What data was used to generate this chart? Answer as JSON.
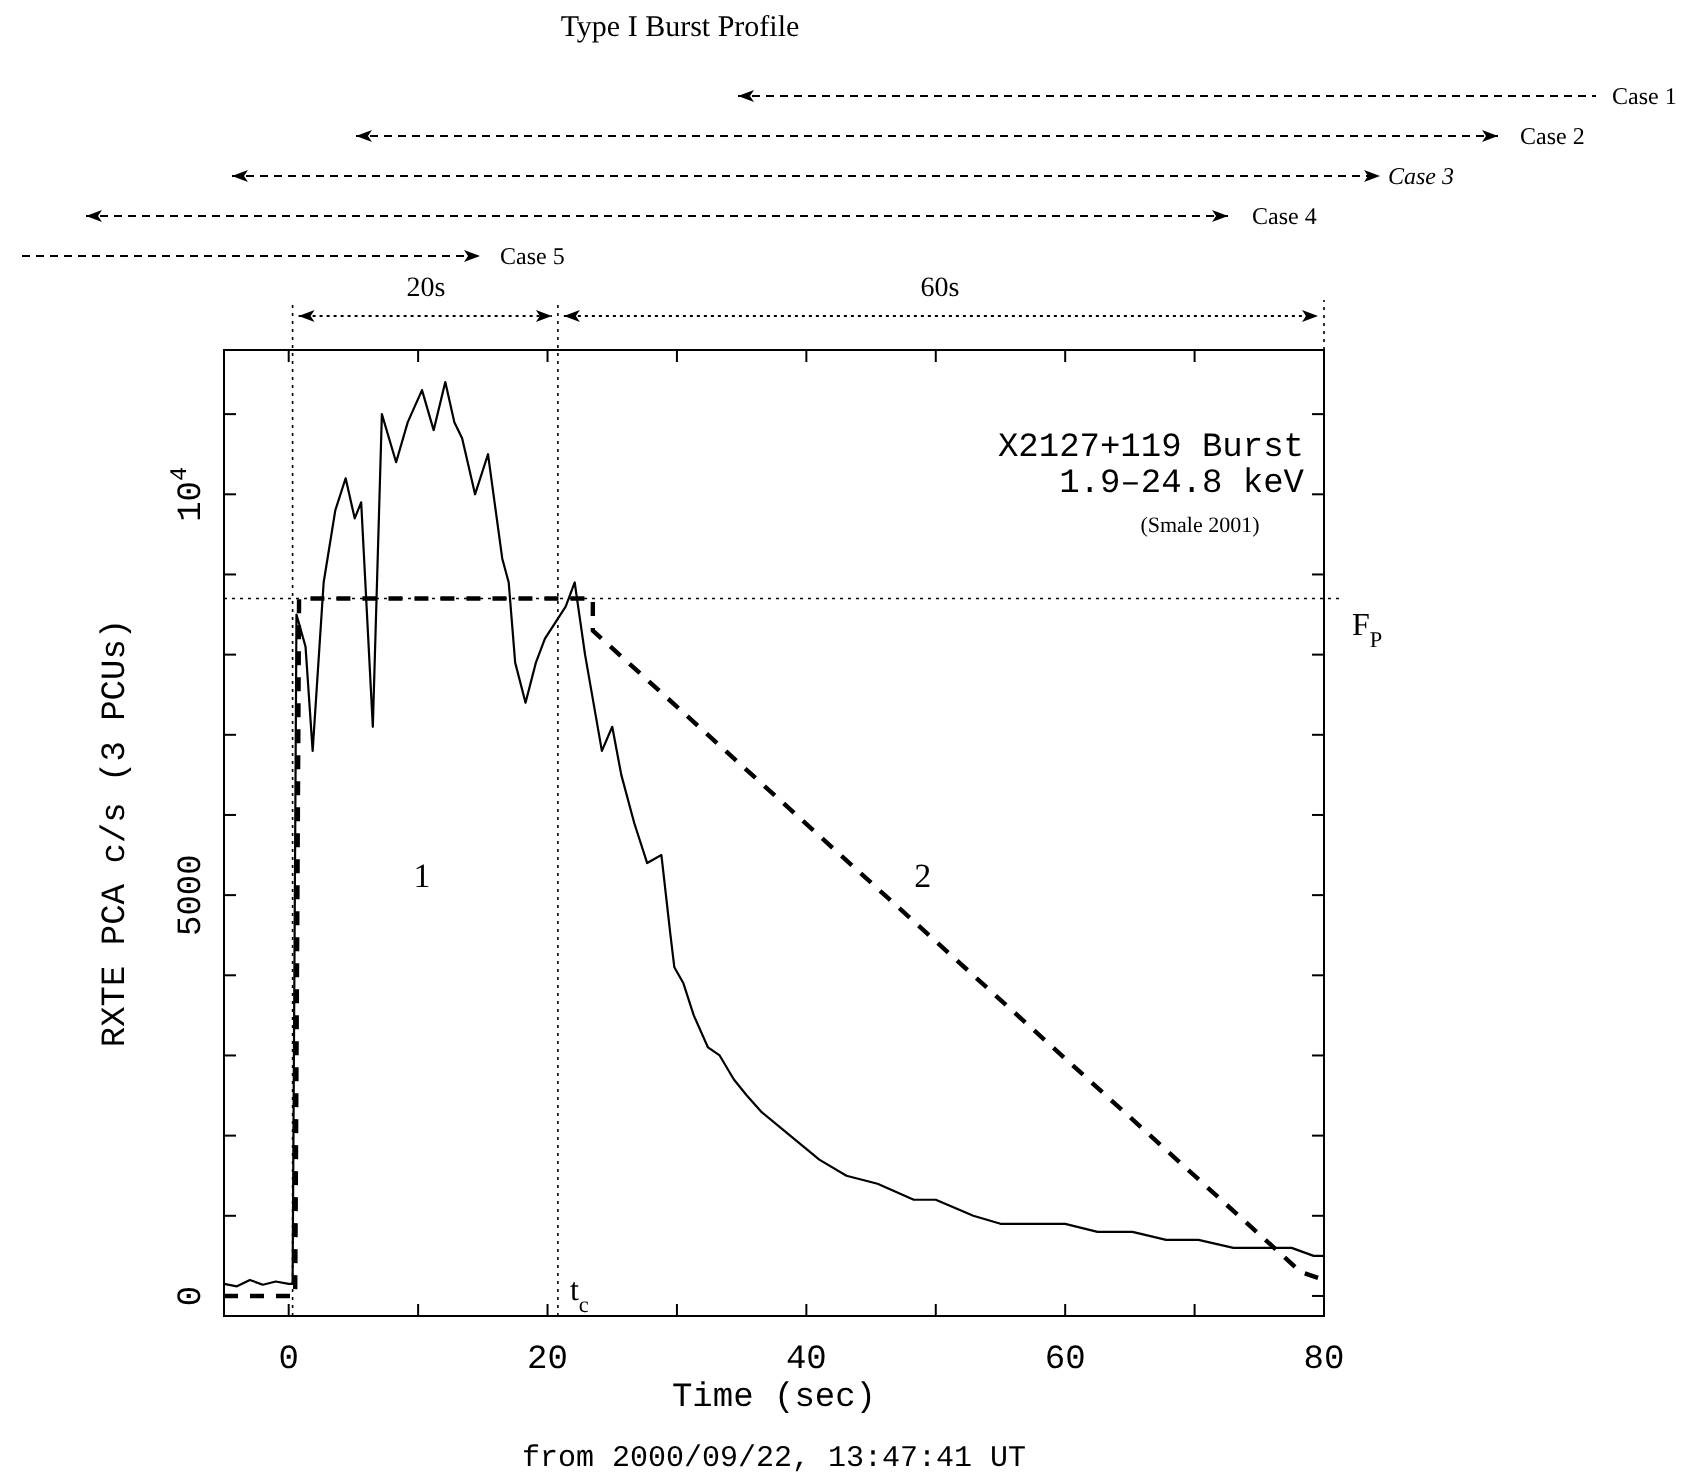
{
  "chart_data": {
    "type": "line",
    "title": "Type I Burst Profile",
    "xlabel": "Time (sec)",
    "ylabel": "RXTE PCA c/s (3 PCUs)",
    "xlim": [
      -5,
      80
    ],
    "ylim": [
      -250,
      11800
    ],
    "xticks": [
      0,
      {
        "value": 10,
        "label": null
      },
      20,
      {
        "value": 30,
        "label": null
      },
      40,
      {
        "value": 50,
        "label": null
      },
      60,
      {
        "value": 70,
        "label": null
      },
      80
    ],
    "yticks": [
      0,
      {
        "value": 1000,
        "label": null
      },
      {
        "value": 2000,
        "label": null
      },
      {
        "value": 3000,
        "label": null
      },
      {
        "value": 4000,
        "label": null
      },
      5000,
      {
        "value": 6000,
        "label": null
      },
      {
        "value": 7000,
        "label": null
      },
      {
        "value": 8000,
        "label": null
      },
      {
        "value": 9000,
        "label": null
      },
      {
        "value": 10000,
        "label": "10$^{4}$"
      },
      {
        "value": 11000,
        "label": null
      }
    ],
    "grid": false,
    "series": [
      {
        "color": "#000000",
        "line_style": "solid",
        "x": [
          -5,
          -4,
          -3,
          -2,
          -1,
          0,
          0.3,
          0.6,
          1.3,
          1.85,
          2.7,
          3.6,
          4.4,
          5.1,
          5.6,
          6.5,
          7.2,
          8.3,
          9.2,
          10.3,
          11.2,
          12.1,
          12.8,
          13.4,
          14.4,
          15.4,
          16.5,
          17,
          17.5,
          18.3,
          19.1,
          19.8,
          20.6,
          21.4,
          22.1,
          22.9,
          24.2,
          25,
          25.7,
          26.7,
          27.7,
          28.8,
          29.5,
          29.8,
          30.5,
          31.3,
          32.4,
          33.3,
          34.4,
          35.4,
          36.5,
          38,
          39.5,
          41,
          43.1,
          45.5,
          48.3,
          50,
          52.9,
          55,
          57.5,
          60,
          62.5,
          65.2,
          67.8,
          70.3,
          73,
          75.4,
          77.5,
          79.2,
          80
        ],
        "values": [
          150,
          120,
          200,
          140,
          180,
          150,
          150,
          8500,
          8100,
          6800,
          8900,
          9800,
          10200,
          9700,
          9900,
          7100,
          11000,
          10400,
          10900,
          11300,
          10800,
          11400,
          10900,
          10700,
          10000,
          10500,
          9200,
          8900,
          7900,
          7400,
          7900,
          8200,
          8400,
          8600,
          8900,
          8000,
          6800,
          7100,
          6500,
          5900,
          5400,
          5500,
          4500,
          4100,
          3900,
          3500,
          3100,
          3000,
          2700,
          2500,
          2300,
          2100,
          1900,
          1700,
          1500,
          1400,
          1200,
          1200,
          1000,
          900,
          900,
          900,
          800,
          800,
          700,
          700,
          600,
          600,
          600,
          500,
          500
        ]
      },
      {
        "color": "#000000",
        "line_style": "dashed",
        "x": [
          -5,
          0.5,
          0.8,
          23.5,
          23.5,
          78.2,
          80
        ],
        "values": [
          0,
          0,
          8700,
          8700,
          8300,
          300,
          200
        ]
      }
    ],
    "ref_lines": [
      {
        "axis": "y",
        "value": 8700,
        "label": "F$_{P}$",
        "line_style": "dotted"
      },
      {
        "axis": "x",
        "value": 0.3,
        "line_style": "dotted"
      },
      {
        "axis": "x",
        "value": 20.8,
        "label": "t$_{c}$",
        "line_style": "dotted"
      }
    ],
    "annotations": [
      "from 2000/09/22, 13:47:41 UT",
      "X2127+119 Burst",
      "1.9–24.8 keV",
      "(Smale 2001)",
      "1",
      "2",
      "Case 1",
      "Case 2",
      "Case 3",
      "Case 4",
      "Case 5",
      "20s",
      "60s"
    ]
  }
}
